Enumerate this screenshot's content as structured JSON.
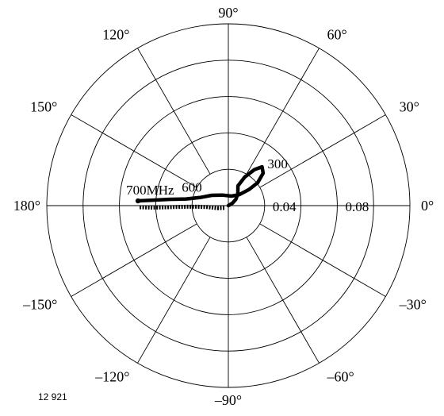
{
  "chart_data": {
    "type": "polar",
    "angle_labels": [
      "0°",
      "30°",
      "60°",
      "90°",
      "120°",
      "150°",
      "180°",
      "–150°",
      "–120°",
      "–90°",
      "–60°",
      "–30°"
    ],
    "angle_values_deg": [
      0,
      30,
      60,
      90,
      120,
      150,
      180,
      -150,
      -120,
      -90,
      -60,
      -30
    ],
    "radial_axis": {
      "range": [
        0,
        0.1
      ],
      "circles": [
        0.02,
        0.04,
        0.06,
        0.08,
        0.1
      ],
      "tick_labels": [
        {
          "text": "0.04",
          "value": 0.04
        },
        {
          "text": "0.08",
          "value": 0.08
        }
      ]
    },
    "grid": true,
    "series": [
      {
        "style": "solid-thick",
        "points": [
          {
            "r": 0.0,
            "theta": 0
          },
          {
            "r": 0.0025,
            "theta": 30
          },
          {
            "r": 0.0055,
            "theta": 40
          },
          {
            "r": 0.0085,
            "theta": 52
          },
          {
            "r": 0.0121,
            "theta": 64
          },
          {
            "r": 0.0182,
            "theta": 60
          },
          {
            "r": 0.0245,
            "theta": 54
          },
          {
            "r": 0.0283,
            "theta": 49
          },
          {
            "r": 0.0262,
            "theta": 43
          },
          {
            "r": 0.0205,
            "theta": 38
          },
          {
            "r": 0.0145,
            "theta": 38
          },
          {
            "r": 0.0085,
            "theta": 45
          },
          {
            "r": 0.0055,
            "theta": 72
          },
          {
            "r": 0.0067,
            "theta": 120
          },
          {
            "r": 0.0107,
            "theta": 148
          },
          {
            "r": 0.0162,
            "theta": 164
          },
          {
            "r": 0.0235,
            "theta": 171
          },
          {
            "r": 0.033,
            "theta": 174
          },
          {
            "r": 0.0425,
            "theta": 176
          },
          {
            "r": 0.0498,
            "theta": 177
          }
        ]
      },
      {
        "style": "dotted-thick",
        "points": [
          {
            "r": 0.0025,
            "theta": 210
          },
          {
            "r": 0.0062,
            "theta": 193
          },
          {
            "r": 0.0115,
            "theta": 184
          },
          {
            "r": 0.017,
            "theta": 182
          },
          {
            "r": 0.0235,
            "theta": 181.5
          },
          {
            "r": 0.032,
            "theta": 181.5
          },
          {
            "r": 0.0415,
            "theta": 181.5
          },
          {
            "r": 0.049,
            "theta": 181
          }
        ]
      }
    ],
    "point_labels": [
      {
        "text": "300",
        "r": 0.034,
        "theta": 37
      },
      {
        "text": "600",
        "r": 0.0215,
        "theta": 159
      },
      {
        "text": "700MHz",
        "r": 0.0435,
        "theta": 172
      }
    ]
  },
  "figure_number": "12 921"
}
